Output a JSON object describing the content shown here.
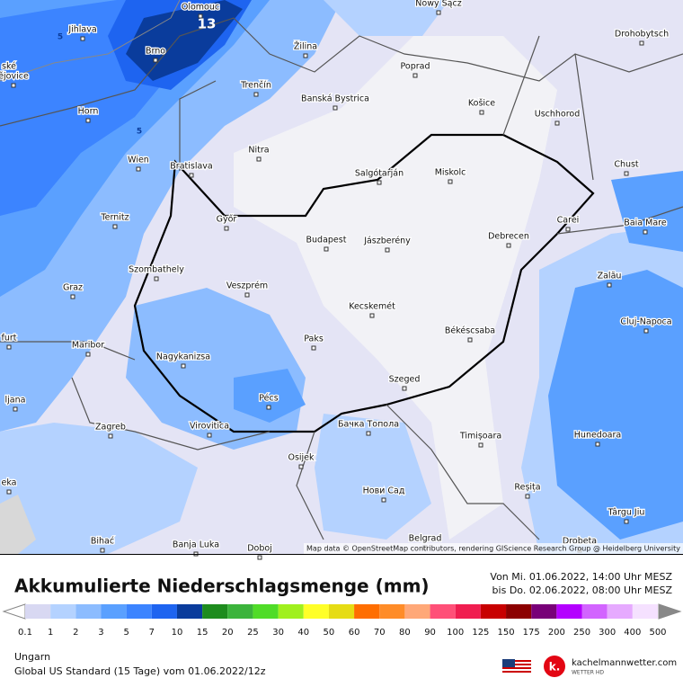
{
  "map": {
    "contour_labels": [
      "13",
      "5",
      "5"
    ],
    "cities": [
      "Olomouc",
      "Nowy Sącz",
      "Jihlava",
      "Žilina",
      "Drohobytsch",
      "Brno",
      "Poprad",
      "ské",
      "ějovice",
      "Trenčín",
      "Banská Bystrica",
      "Košice",
      "Horn",
      "Uschhorod",
      "Nitra",
      "Wien",
      "Bratislava",
      "Chust",
      "Salgótarján",
      "Miskolc",
      "Ternitz",
      "Győr",
      "Carei",
      "Baia Mare",
      "Budapest",
      "Jászberény",
      "Debrecen",
      "Szombathely",
      "Zalău",
      "Graz",
      "Veszprém",
      "Kecskemét",
      "Cluj-Napoca",
      "Paks",
      "Békéscsaba",
      "furt",
      "Maribor",
      "Nagykanizsa",
      "Szeged",
      "ljana",
      "Pécs",
      "Бачка Топола",
      "Zagreb",
      "Virovitica",
      "Timișoara",
      "Hunedoara",
      "Osijek",
      "eka",
      "Reșița",
      "Нови Сад",
      "Târgu Jiu",
      "Bihać",
      "Banja Luka",
      "Belgrad",
      "Doboj",
      "Drobeta"
    ],
    "attribution": "Map data © OpenStreetMap contributors, rendering GIScience Research Group @ Heidelberg University"
  },
  "header": {
    "title": "Akkumulierte Niederschlagsmenge (mm)",
    "from": "Von Mi. 01.06.2022, 14:00 Uhr MESZ",
    "to": "bis Do. 02.06.2022, 08:00 Uhr MESZ"
  },
  "legend": {
    "ticks": [
      0.1,
      1,
      2,
      3,
      5,
      7,
      10,
      15,
      20,
      25,
      30,
      40,
      50,
      60,
      70,
      80,
      90,
      100,
      125,
      150,
      175,
      200,
      250,
      300,
      400,
      500
    ],
    "colors": [
      "#d8d8f2",
      "#b4d2ff",
      "#8cbcff",
      "#5aa0ff",
      "#3c84ff",
      "#1e64f0",
      "#0a3c9c",
      "#1e8c1e",
      "#3cb43c",
      "#50dc28",
      "#a0f01e",
      "#ffff28",
      "#e6dc14",
      "#ff6e00",
      "#ff8c28",
      "#ffa878",
      "#ff5078",
      "#f01e50",
      "#c80000",
      "#8c0000",
      "#780078",
      "#b400ff",
      "#d264ff",
      "#e6aaff",
      "#f5e1ff"
    ]
  },
  "footer": {
    "region": "Ungarn",
    "model": "Global US Standard (15 Tage) vom 01.06.2022/12z",
    "brand": "kachelmannwetter.com",
    "brand_sub": "WETTER HD"
  }
}
